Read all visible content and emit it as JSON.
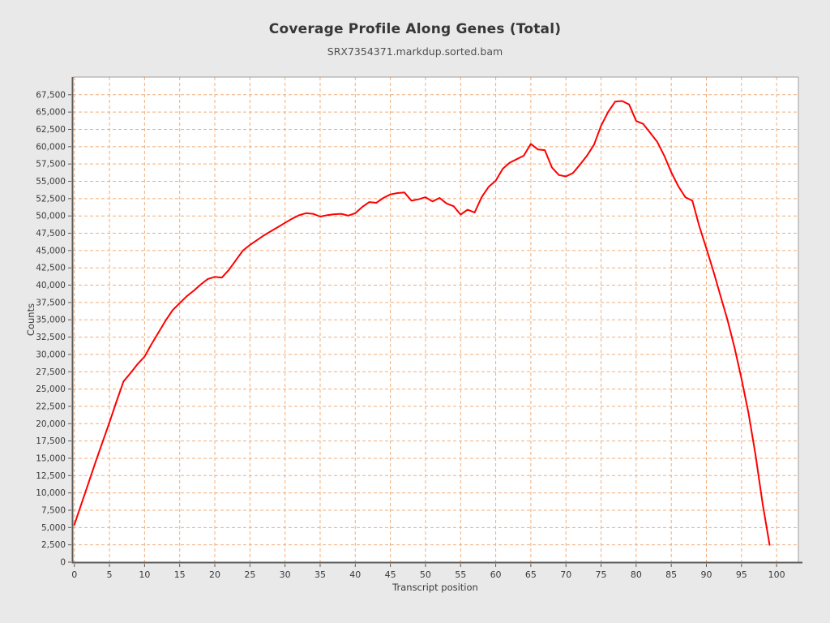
{
  "header": {
    "title": "Coverage Profile Along Genes (Total)",
    "subtitle": "SRX7354371.markdup.sorted.bam"
  },
  "chart_data": {
    "type": "line",
    "title": "Coverage Profile Along Genes (Total)",
    "subtitle": "SRX7354371.markdup.sorted.bam",
    "xlabel": "Transcript position",
    "ylabel": "Counts",
    "xlim": [
      -0.2,
      103.1
    ],
    "ylim": [
      0,
      70055
    ],
    "grid": true,
    "legend": "none",
    "x_ticks": [
      0,
      5,
      10,
      15,
      20,
      25,
      30,
      35,
      40,
      45,
      50,
      55,
      60,
      65,
      70,
      75,
      80,
      85,
      90,
      95,
      100
    ],
    "y_ticks": [
      0,
      2500,
      5000,
      7500,
      10000,
      12500,
      15000,
      17500,
      20000,
      22500,
      25000,
      27500,
      30000,
      32500,
      35000,
      37500,
      40000,
      42500,
      45000,
      47500,
      50000,
      52500,
      55000,
      57500,
      60000,
      62500,
      65000,
      67500
    ],
    "series": [
      {
        "name": "SRX7354371.markdup.sorted.bam",
        "color": "#fe0000",
        "x_start": 0,
        "x_step": 1,
        "values": [
          5400,
          8400,
          11400,
          14400,
          17300,
          20200,
          23200,
          26100,
          27300,
          28600,
          29700,
          31500,
          33200,
          34900,
          36400,
          37400,
          38400,
          39200,
          40100,
          40900,
          41200,
          41100,
          42200,
          43600,
          45000,
          45800,
          46500,
          47200,
          47800,
          48400,
          49000,
          49600,
          50100,
          50400,
          50300,
          49900,
          50100,
          50250,
          50300,
          50050,
          50400,
          51300,
          52000,
          51900,
          52600,
          53100,
          53300,
          53400,
          52200,
          52400,
          52700,
          52100,
          52600,
          51800,
          51400,
          50200,
          50900,
          50500,
          52700,
          54200,
          55100,
          56800,
          57700,
          58200,
          58700,
          60400,
          59600,
          59500,
          57000,
          55900,
          55700,
          56200,
          57400,
          58700,
          60300,
          63000,
          65000,
          66500,
          66600,
          66100,
          63700,
          63300,
          62000,
          60700,
          58700,
          56300,
          54300,
          52700,
          52200,
          48500,
          45300,
          42000,
          38500,
          35000,
          31000,
          26500,
          21500,
          15500,
          8500,
          2500
        ]
      }
    ],
    "colors": {
      "line": "#fe0000",
      "grid": "#f0ad79",
      "plot_bg": "#ffffff",
      "page_bg": "#e9e9e9",
      "axis": "#5b5b5b",
      "border": "#9e9e9e",
      "text": "#3a3a3a"
    }
  }
}
